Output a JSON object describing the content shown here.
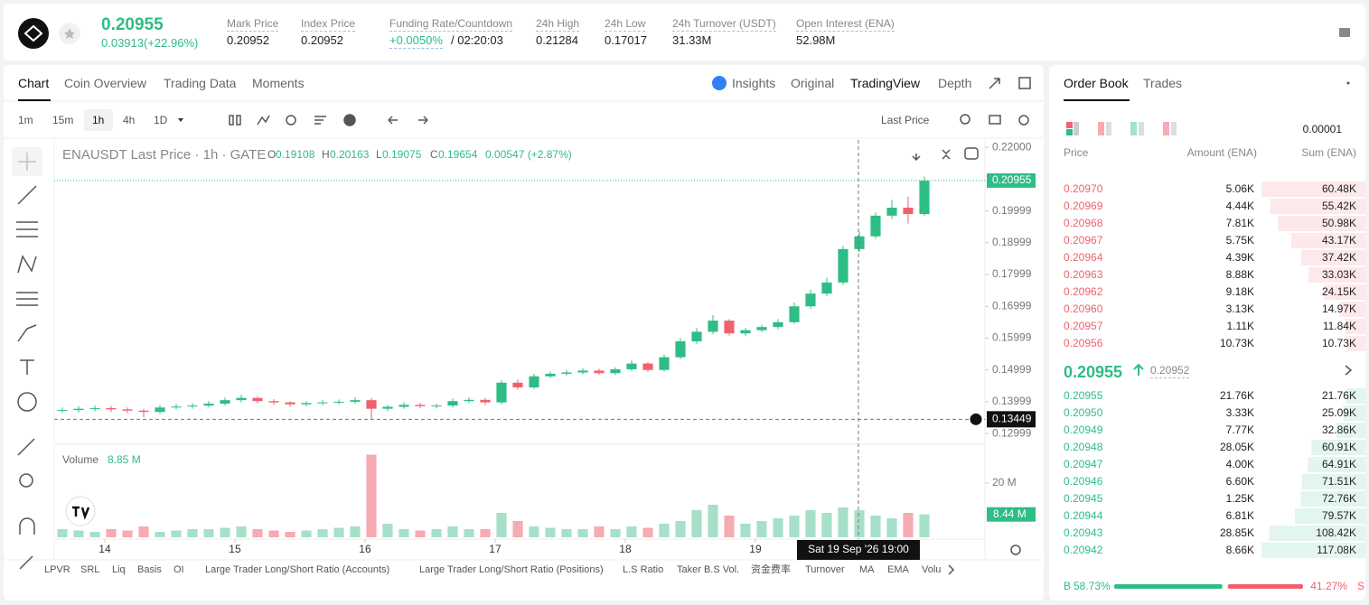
{
  "header": {
    "price": "0.20955",
    "change": "0.03913(+22.96%)",
    "stats": [
      {
        "label": "Mark Price",
        "value": "0.20952"
      },
      {
        "label": "Index Price",
        "value": "0.20952"
      },
      {
        "label": "Funding Rate/Countdown",
        "value": "+0.0050%",
        "extra": "/ 02:20:03"
      },
      {
        "label": "24h High",
        "value": "0.21284"
      },
      {
        "label": "24h Low",
        "value": "0.17017"
      },
      {
        "label": "24h Turnover (USDT)",
        "value": "31.33M"
      },
      {
        "label": "Open Interest (ENA)",
        "value": "52.98M"
      }
    ]
  },
  "tabs": [
    "Chart",
    "Coin Overview",
    "Trading Data",
    "Moments"
  ],
  "view_tabs": [
    "Insights",
    "Original",
    "TradingView",
    "Depth"
  ],
  "intervals": [
    "1m",
    "15m",
    "1h",
    "4h",
    "1D"
  ],
  "price_type": "Last Price",
  "legend": {
    "symbol": "ENAUSDT Last Price · 1h · GATE",
    "items": [
      {
        "key": "O",
        "value": "0.19108"
      },
      {
        "key": "H",
        "value": "0.20163"
      },
      {
        "key": "L",
        "value": "0.19075"
      },
      {
        "key": "C",
        "value": "0.19654"
      }
    ],
    "change": "0.00547 (+2.87%)"
  },
  "volume_legend": {
    "label": "Volume",
    "value": "8.85 M"
  },
  "indicators": [
    "LPVR",
    "SRL",
    "Liq",
    "Basis",
    "OI",
    "Large Trader Long/Short Ratio (Accounts)",
    "Large Trader Long/Short Ratio (Positions)",
    "L.S Ratio",
    "Taker B.S Vol.",
    "资金费率",
    "Turnover",
    "MA",
    "EMA",
    "Volu"
  ],
  "chart_data": [
    {
      "type": "candlestick",
      "x": [
        1.5,
        4.5,
        7.5,
        10.5,
        13.5,
        16.5,
        19.5,
        22.5,
        25.5,
        28.5,
        31.5,
        34.5,
        37.5,
        40.5,
        43.5,
        46.5,
        49.5,
        52.5,
        55.5,
        58.5,
        61.5,
        64.5,
        67.5,
        70.5,
        73.5,
        76.5,
        79.5,
        82.5,
        85.5,
        88.5,
        91.5,
        94.5,
        97.5,
        100.5,
        103.5,
        106.5,
        109.5,
        112.5,
        115.5,
        118.5,
        121.5,
        124.5,
        127.5,
        130.5,
        133.5,
        136.5,
        139.5,
        142.5,
        145.5,
        148.5,
        151.5,
        154.5,
        157.5,
        160.5
      ],
      "open": [
        0.1372,
        0.1374,
        0.1378,
        0.138,
        0.1376,
        0.1372,
        0.1368,
        0.1382,
        0.1385,
        0.1388,
        0.1394,
        0.1405,
        0.1412,
        0.1402,
        0.1398,
        0.1392,
        0.1396,
        0.1398,
        0.14,
        0.1405,
        0.1378,
        0.1384,
        0.139,
        0.1386,
        0.1388,
        0.1402,
        0.1406,
        0.1398,
        0.146,
        0.1445,
        0.148,
        0.1488,
        0.1492,
        0.1498,
        0.149,
        0.1502,
        0.152,
        0.15,
        0.154,
        0.159,
        0.162,
        0.1655,
        0.1615,
        0.1625,
        0.1635,
        0.165,
        0.17,
        0.174,
        0.1775,
        0.188,
        0.192,
        0.1985,
        0.201,
        0.199
      ],
      "high": [
        0.1382,
        0.1386,
        0.1388,
        0.1387,
        0.1382,
        0.1378,
        0.139,
        0.1393,
        0.1396,
        0.1402,
        0.1413,
        0.1422,
        0.1418,
        0.1408,
        0.1402,
        0.1402,
        0.1405,
        0.1407,
        0.1414,
        0.1412,
        0.139,
        0.1398,
        0.1396,
        0.1394,
        0.141,
        0.1414,
        0.1412,
        0.1468,
        0.147,
        0.1488,
        0.1495,
        0.15,
        0.1505,
        0.1504,
        0.1508,
        0.153,
        0.1525,
        0.1548,
        0.16,
        0.1632,
        0.1672,
        0.166,
        0.1632,
        0.1642,
        0.166,
        0.1712,
        0.1752,
        0.179,
        0.189,
        0.1935,
        0.1995,
        0.2035,
        0.2045,
        0.2108
      ],
      "low": [
        0.1365,
        0.1366,
        0.137,
        0.1368,
        0.1364,
        0.1352,
        0.1362,
        0.1376,
        0.1378,
        0.1382,
        0.1388,
        0.1398,
        0.1395,
        0.139,
        0.1384,
        0.1386,
        0.1389,
        0.1391,
        0.1394,
        0.1345,
        0.137,
        0.1378,
        0.138,
        0.1379,
        0.1382,
        0.1396,
        0.139,
        0.1392,
        0.1438,
        0.144,
        0.1474,
        0.1482,
        0.1486,
        0.1484,
        0.1484,
        0.1496,
        0.1494,
        0.1495,
        0.1534,
        0.1582,
        0.1612,
        0.1608,
        0.1606,
        0.1618,
        0.1628,
        0.1645,
        0.1692,
        0.1732,
        0.1768,
        0.187,
        0.1912,
        0.1975,
        0.196,
        0.1985
      ],
      "close": [
        0.1374,
        0.1378,
        0.138,
        0.1376,
        0.1372,
        0.1368,
        0.1382,
        0.1385,
        0.1388,
        0.1394,
        0.1405,
        0.1412,
        0.1402,
        0.1398,
        0.1392,
        0.1396,
        0.1398,
        0.14,
        0.1405,
        0.1378,
        0.1384,
        0.139,
        0.1386,
        0.1388,
        0.1402,
        0.1406,
        0.1398,
        0.146,
        0.1445,
        0.148,
        0.1488,
        0.1492,
        0.1498,
        0.149,
        0.1502,
        0.152,
        0.15,
        0.154,
        0.159,
        0.162,
        0.1655,
        0.1615,
        0.1625,
        0.1635,
        0.165,
        0.17,
        0.174,
        0.1775,
        0.188,
        0.192,
        0.1985,
        0.201,
        0.199,
        0.2095
      ],
      "up_color": "#2ebd85",
      "down_color": "#f0616d",
      "xlim": [
        0,
        171.67
      ],
      "xticks": [
        {
          "value": 9.33,
          "label": "14"
        },
        {
          "value": 33.33,
          "label": "15"
        },
        {
          "value": 57.33,
          "label": "16"
        },
        {
          "value": 81.33,
          "label": "17"
        },
        {
          "value": 105.33,
          "label": "18"
        },
        {
          "value": 129.33,
          "label": "19"
        }
      ],
      "ylim": [
        0.1272,
        0.2223
      ],
      "yticks": [
        {
          "value": 0.22,
          "label": "0.22000"
        },
        0.19999,
        0.18999,
        0.17999,
        0.16999,
        0.15999,
        0.14999,
        0.13999,
        0.12999
      ],
      "last_price": 0.20955,
      "crosshair": {
        "x": 148.33,
        "y": 0.13449,
        "label": "Sat 19 Sep '26 19:00"
      }
    },
    {
      "type": "bar",
      "values": [
        3,
        2.5,
        2,
        3,
        2.5,
        4,
        2,
        2.5,
        3,
        3,
        3.5,
        4,
        3,
        2.5,
        2,
        2.5,
        3,
        3.5,
        4,
        30.5,
        5,
        3,
        2.5,
        3,
        4,
        3,
        3,
        9,
        6,
        4,
        3.5,
        3,
        3,
        4,
        3,
        4,
        3.5,
        5,
        6,
        10,
        12,
        8,
        5,
        6,
        7,
        8,
        10,
        9,
        11,
        10,
        8,
        7,
        9,
        8.44
      ],
      "ylim": [
        0,
        34
      ],
      "yticks": [
        {
          "value": 20,
          "label": "20 M"
        }
      ],
      "last_value_label": "8.44 M",
      "up_color": "#a6e0c8",
      "down_color": "#f6aab2"
    }
  ],
  "order_book": {
    "tabs": [
      "Order Book",
      "Trades"
    ],
    "precision": "0.00001",
    "columns": [
      "Price",
      "Amount (ENA)",
      "Sum (ENA)"
    ],
    "asks": [
      [
        "0.20970",
        "5.06K",
        "60.48K"
      ],
      [
        "0.20969",
        "4.44K",
        "55.42K"
      ],
      [
        "0.20968",
        "7.81K",
        "50.98K"
      ],
      [
        "0.20967",
        "5.75K",
        "43.17K"
      ],
      [
        "0.20964",
        "4.39K",
        "37.42K"
      ],
      [
        "0.20963",
        "8.88K",
        "33.03K"
      ],
      [
        "0.20962",
        "9.18K",
        "24.15K"
      ],
      [
        "0.20960",
        "3.13K",
        "14.97K"
      ],
      [
        "0.20957",
        "1.11K",
        "11.84K"
      ],
      [
        "0.20956",
        "10.73K",
        "10.73K"
      ]
    ],
    "mid_price": "0.20955",
    "mark_price": "0.20952",
    "bids": [
      [
        "0.20955",
        "21.76K",
        "21.76K"
      ],
      [
        "0.20950",
        "3.33K",
        "25.09K"
      ],
      [
        "0.20949",
        "7.77K",
        "32.86K"
      ],
      [
        "0.20948",
        "28.05K",
        "60.91K"
      ],
      [
        "0.20947",
        "4.00K",
        "64.91K"
      ],
      [
        "0.20946",
        "6.60K",
        "71.51K"
      ],
      [
        "0.20945",
        "1.25K",
        "72.76K"
      ],
      [
        "0.20944",
        "6.81K",
        "79.57K"
      ],
      [
        "0.20943",
        "28.85K",
        "108.42K"
      ],
      [
        "0.20942",
        "8.66K",
        "117.08K"
      ]
    ],
    "ratio": {
      "buy_key": "B",
      "buy": 58.73,
      "buy_label": "58.73%",
      "sell": 41.27,
      "sell_label": "41.27%",
      "sell_key": "S"
    }
  }
}
